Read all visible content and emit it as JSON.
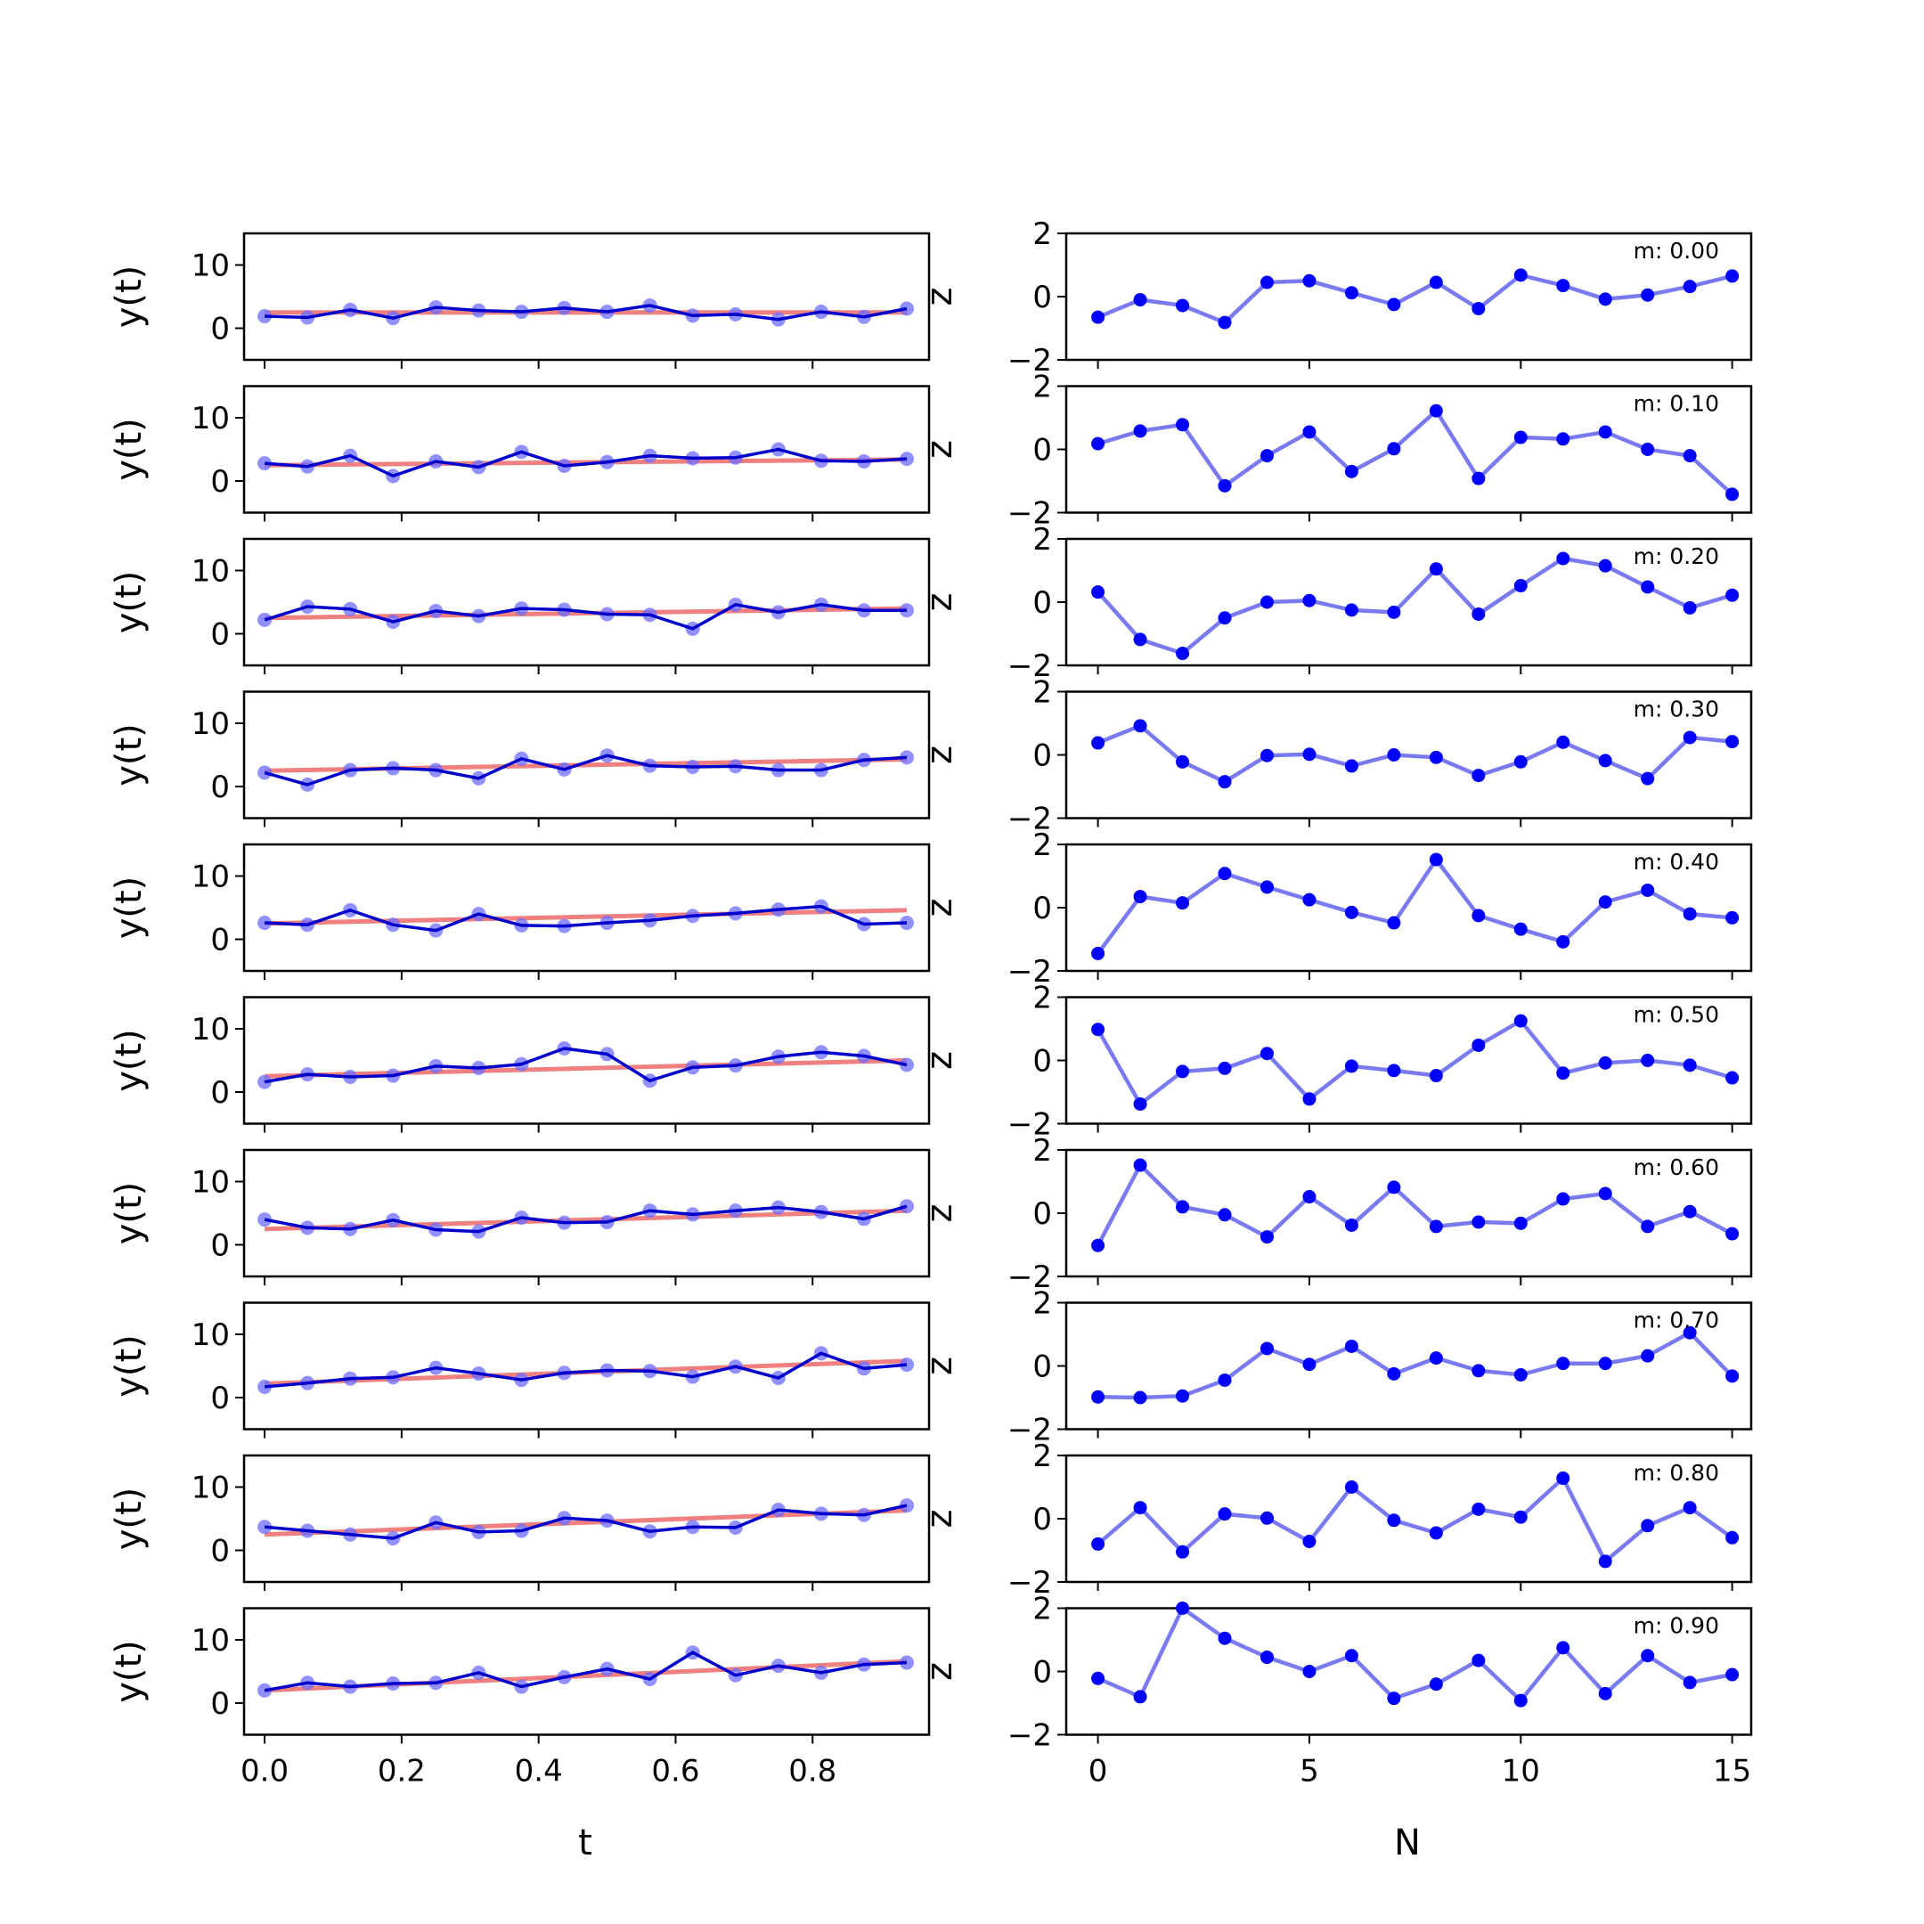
{
  "figure": {
    "left_xlabel": "t",
    "right_xlabel": "N",
    "left_ylabel": "y(t)",
    "right_ylabel": "z"
  },
  "style": {
    "fit_color": "#f08080",
    "data_color": "#0000cc",
    "point_color": "#6b6bff",
    "resid_line_color": "#7a7af0",
    "resid_point_color": "#0000ff"
  },
  "chart_data": [
    {
      "type": "line",
      "panel": "left",
      "xlabel": "t",
      "ylabel": "y(t)",
      "ylim": [
        -5,
        15
      ],
      "xlim": [
        -0.03,
        0.97
      ],
      "yticks": [
        0,
        10
      ],
      "xticks": [
        0.0,
        0.2,
        0.4,
        0.6,
        0.8
      ],
      "x": [
        0.0,
        0.0625,
        0.125,
        0.1875,
        0.25,
        0.3125,
        0.375,
        0.4375,
        0.5,
        0.5625,
        0.625,
        0.6875,
        0.75,
        0.8125,
        0.875,
        0.9375
      ],
      "series": [
        {
          "m": 0.0,
          "fit": [
            2.5,
            2.5
          ],
          "values": [
            1.9,
            1.7,
            2.9,
            1.6,
            3.3,
            2.8,
            2.6,
            3.2,
            2.6,
            3.6,
            2.0,
            2.2,
            1.4,
            2.6,
            1.8,
            3.1
          ]
        },
        {
          "m": 0.1,
          "fit": [
            2.5,
            3.4
          ],
          "values": [
            2.8,
            2.3,
            4.0,
            0.8,
            3.1,
            2.2,
            4.6,
            2.4,
            3.0,
            4.0,
            3.6,
            3.7,
            5.0,
            3.2,
            3.1,
            3.5
          ]
        },
        {
          "m": 0.2,
          "fit": [
            2.5,
            4.0
          ],
          "values": [
            2.2,
            4.3,
            3.9,
            1.9,
            3.6,
            2.8,
            4.0,
            3.8,
            3.1,
            3.0,
            0.8,
            4.6,
            3.4,
            4.6,
            3.7,
            3.7
          ]
        },
        {
          "m": 0.3,
          "fit": [
            2.5,
            4.3
          ],
          "values": [
            2.2,
            0.3,
            2.6,
            2.9,
            2.6,
            1.3,
            4.4,
            2.7,
            4.9,
            3.3,
            3.1,
            3.2,
            2.6,
            2.6,
            4.2,
            4.6
          ]
        },
        {
          "m": 0.4,
          "fit": [
            2.5,
            4.6
          ],
          "values": [
            2.6,
            2.3,
            4.6,
            2.3,
            1.4,
            4.0,
            2.2,
            2.1,
            2.6,
            3.0,
            3.7,
            4.1,
            4.7,
            5.2,
            2.4,
            2.6
          ]
        },
        {
          "m": 0.5,
          "fit": [
            2.5,
            5.0
          ],
          "values": [
            1.6,
            2.8,
            2.4,
            2.6,
            4.1,
            3.8,
            4.4,
            6.9,
            6.0,
            1.8,
            3.9,
            4.2,
            5.6,
            6.3,
            5.7,
            4.3
          ]
        },
        {
          "m": 0.6,
          "fit": [
            2.5,
            5.4
          ],
          "values": [
            4.0,
            2.7,
            2.5,
            3.9,
            2.4,
            2.1,
            4.3,
            3.5,
            3.6,
            5.4,
            4.8,
            5.4,
            5.9,
            5.2,
            4.1,
            6.1
          ]
        },
        {
          "m": 0.7,
          "fit": [
            2.2,
            5.8
          ],
          "values": [
            1.7,
            2.3,
            3.0,
            3.2,
            4.7,
            3.8,
            2.8,
            3.9,
            4.3,
            4.2,
            3.3,
            4.9,
            3.1,
            7.0,
            4.6,
            5.2
          ]
        },
        {
          "m": 0.8,
          "fit": [
            2.5,
            6.3
          ],
          "values": [
            3.7,
            3.1,
            2.5,
            1.9,
            4.4,
            2.9,
            3.1,
            5.1,
            4.7,
            3.0,
            3.7,
            3.6,
            6.4,
            5.8,
            5.6,
            7.1
          ]
        },
        {
          "m": 0.9,
          "fit": [
            2.0,
            6.6
          ],
          "values": [
            2.0,
            3.2,
            2.6,
            3.1,
            3.2,
            4.8,
            2.6,
            4.1,
            5.4,
            3.8,
            8.0,
            4.4,
            5.9,
            4.8,
            6.1,
            6.4
          ]
        }
      ]
    },
    {
      "type": "line",
      "panel": "right",
      "xlabel": "N",
      "ylabel": "z",
      "ylim": [
        -2,
        2
      ],
      "xlim": [
        -0.75,
        15.45
      ],
      "yticks": [
        -2,
        0,
        2
      ],
      "xticks": [
        0,
        5,
        10,
        15
      ],
      "x": [
        0,
        1,
        2,
        3,
        4,
        5,
        6,
        7,
        8,
        9,
        10,
        11,
        12,
        13,
        14,
        15
      ],
      "series": [
        {
          "label": "m: 0.00",
          "values": [
            -0.65,
            -0.1,
            -0.28,
            -0.82,
            0.45,
            0.5,
            0.12,
            -0.25,
            0.45,
            -0.38,
            0.68,
            0.35,
            -0.08,
            0.05,
            0.32,
            0.65
          ]
        },
        {
          "label": "m: 0.10",
          "values": [
            0.18,
            0.58,
            0.78,
            -1.15,
            -0.2,
            0.55,
            -0.7,
            0.02,
            1.22,
            -0.92,
            0.38,
            0.33,
            0.55,
            0.0,
            -0.2,
            -1.42
          ]
        },
        {
          "label": "m: 0.20",
          "values": [
            0.32,
            -1.18,
            -1.62,
            -0.5,
            0.0,
            0.05,
            -0.25,
            -0.32,
            1.05,
            -0.38,
            0.52,
            1.38,
            1.15,
            0.48,
            -0.18,
            0.22
          ]
        },
        {
          "label": "m: 0.30",
          "values": [
            0.38,
            0.92,
            -0.22,
            -0.85,
            -0.02,
            0.02,
            -0.35,
            0.0,
            -0.08,
            -0.65,
            -0.22,
            0.4,
            -0.18,
            -0.75,
            0.55,
            0.42
          ]
        },
        {
          "label": "m: 0.40",
          "values": [
            -1.45,
            0.35,
            0.15,
            1.08,
            0.65,
            0.25,
            -0.15,
            -0.48,
            1.52,
            -0.25,
            -0.68,
            -1.08,
            0.18,
            0.55,
            -0.2,
            -0.32
          ]
        },
        {
          "label": "m: 0.50",
          "values": [
            0.98,
            -1.38,
            -0.35,
            -0.25,
            0.22,
            -1.22,
            -0.18,
            -0.32,
            -0.48,
            0.48,
            1.25,
            -0.4,
            -0.08,
            0.0,
            -0.15,
            -0.55
          ]
        },
        {
          "label": "m: 0.60",
          "values": [
            -1.02,
            1.52,
            0.2,
            -0.05,
            -0.75,
            0.52,
            -0.38,
            0.82,
            -0.42,
            -0.28,
            -0.32,
            0.45,
            0.62,
            -0.42,
            0.05,
            -0.65
          ]
        },
        {
          "label": "m: 0.70",
          "values": [
            -0.98,
            -1.0,
            -0.95,
            -0.45,
            0.55,
            0.05,
            0.62,
            -0.25,
            0.25,
            -0.15,
            -0.28,
            0.08,
            0.08,
            0.32,
            1.05,
            -0.32
          ]
        },
        {
          "label": "m: 0.80",
          "values": [
            -0.8,
            0.35,
            -1.05,
            0.15,
            0.02,
            -0.72,
            1.0,
            -0.05,
            -0.45,
            0.3,
            0.05,
            1.28,
            -1.35,
            -0.22,
            0.35,
            -0.6
          ]
        },
        {
          "label": "m: 0.90",
          "values": [
            -0.22,
            -0.8,
            2.0,
            1.05,
            0.45,
            0.0,
            0.5,
            -0.85,
            -0.4,
            0.35,
            -0.92,
            0.75,
            -0.7,
            0.5,
            -0.35,
            -0.1
          ]
        }
      ]
    }
  ]
}
